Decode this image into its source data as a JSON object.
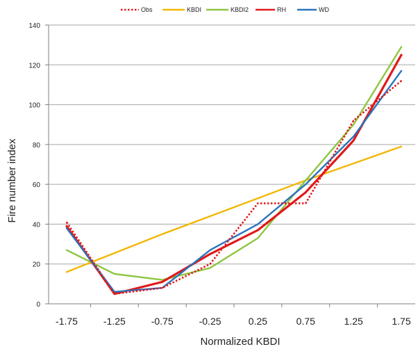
{
  "chart_data": {
    "type": "line",
    "xlabel": "Normalized KBDI",
    "ylabel": "Fire number index",
    "x": [
      "-1.75",
      "-1.25",
      "-0.75",
      "-0.25",
      "0.25",
      "0.75",
      "1.25",
      "1.75"
    ],
    "ylim": [
      0,
      140
    ],
    "yticks": [
      0,
      20,
      40,
      60,
      80,
      100,
      120,
      140
    ],
    "grid": "horizontal",
    "legend_position": "top",
    "series": [
      {
        "name": "Obs",
        "color": "#e0191a",
        "style": "dotted",
        "values": [
          41,
          5,
          8,
          20,
          50.5,
          50.5,
          92,
          112
        ]
      },
      {
        "name": "KBDI",
        "color": "#f2b705",
        "style": "solid",
        "values": [
          16,
          25.5,
          35,
          44,
          53,
          62,
          70.5,
          79
        ]
      },
      {
        "name": "KBDI2",
        "color": "#8ec641",
        "style": "solid",
        "values": [
          27,
          15,
          12,
          18,
          33,
          62,
          90,
          129
        ]
      },
      {
        "name": "RH",
        "color": "#e0191a",
        "style": "solid",
        "values": [
          39,
          5,
          11,
          25,
          37,
          56,
          82,
          125
        ]
      },
      {
        "name": "WD",
        "color": "#2a73bd",
        "style": "solid",
        "values": [
          38,
          6,
          8,
          27,
          40,
          60,
          84,
          117
        ]
      }
    ]
  }
}
